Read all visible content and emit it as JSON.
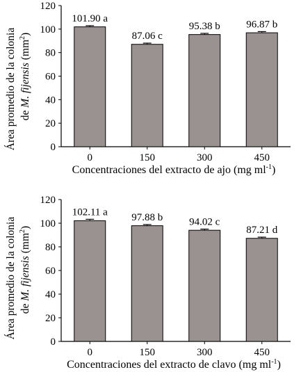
{
  "colors": {
    "bar_fill": "#9a9191",
    "bar_stroke": "#000000"
  },
  "chart_data": [
    {
      "type": "bar",
      "title": "",
      "ylabel": "Área promedio de la colonia de M. fijensis (mm²)",
      "ylabel_line1": "Área promedio de la colonia",
      "ylabel_line2_pre": "de ",
      "ylabel_line2_italic": "M. fijensis",
      "ylabel_line2_post": " (mm",
      "ylabel_line2_sup": "2",
      "ylabel_line2_end": ")",
      "xlabel": "Concentraciones del extracto de ajo (mg ml-1)",
      "xlabel_main": "Concentraciones del extracto de ajo (mg ml",
      "xlabel_sup": "-1",
      "xlabel_end": ")",
      "categories": [
        "0",
        "150",
        "300",
        "450"
      ],
      "values": [
        101.9,
        87.06,
        95.38,
        96.87
      ],
      "errors": [
        1.0,
        1.0,
        1.0,
        1.0
      ],
      "data_labels": [
        "101.90 a",
        "87.06 c",
        "95.38 b",
        "96.87 b"
      ],
      "ylim": [
        0,
        120
      ],
      "yticks": [
        "0",
        "20",
        "40",
        "60",
        "80",
        "100",
        "120"
      ],
      "grid": false
    },
    {
      "type": "bar",
      "title": "",
      "ylabel": "Área promedio de la colonia de M. fijensis (mm²)",
      "ylabel_line1": "Área promedio de la colonia",
      "ylabel_line2_pre": "de ",
      "ylabel_line2_italic": "M. fijensis",
      "ylabel_line2_post": " (mm",
      "ylabel_line2_sup": "2",
      "ylabel_line2_end": ")",
      "xlabel": "Concentraciones del extracto de clavo (mg ml-1)",
      "xlabel_main": "Concentraciones del extracto de clavo (mg ml",
      "xlabel_sup": "-1",
      "xlabel_end": ")",
      "categories": [
        "0",
        "150",
        "300",
        "450"
      ],
      "values": [
        102.11,
        97.88,
        94.02,
        87.21
      ],
      "errors": [
        1.2,
        1.0,
        1.0,
        1.0
      ],
      "data_labels": [
        "102.11 a",
        "97.88 b",
        "94.02 c",
        "87.21 d"
      ],
      "ylim": [
        0,
        120
      ],
      "yticks": [
        "0",
        "20",
        "40",
        "60",
        "80",
        "100",
        "120"
      ],
      "grid": false
    }
  ]
}
